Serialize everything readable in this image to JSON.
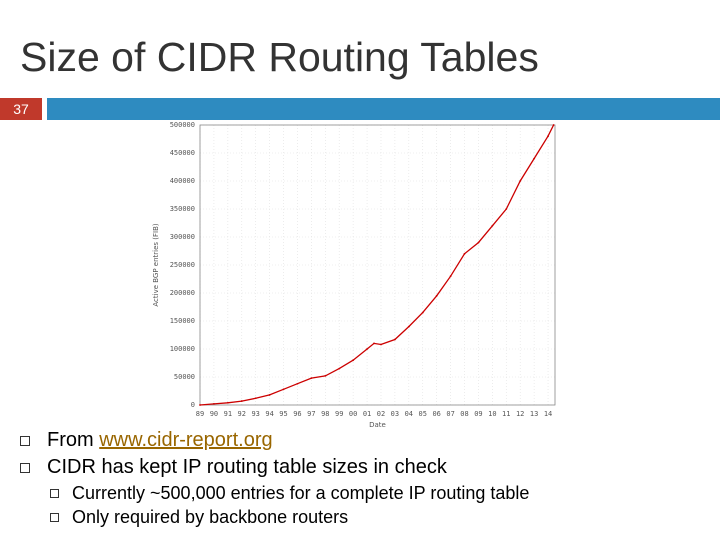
{
  "slide": {
    "title": "Size of CIDR Routing Tables",
    "number": "37"
  },
  "bullets": [
    {
      "prefix": "From ",
      "link": "www.cidr-report.org"
    },
    {
      "text": "CIDR has kept IP routing table sizes in check"
    }
  ],
  "sub_bullets": [
    {
      "text": "Currently ~500,000 entries for a complete IP routing table"
    },
    {
      "text": "Only required by backbone routers"
    }
  ],
  "colors": {
    "accent_bar": "#2e8bc0",
    "number_box": "#c0392b",
    "series": "#cc0000",
    "link": "#996600"
  },
  "chart_data": {
    "type": "line",
    "title": "",
    "xlabel": "Date",
    "ylabel": "Active BGP entries (FIB)",
    "xlim": [
      1989,
      2014.5
    ],
    "ylim": [
      0,
      500000
    ],
    "x_ticks": [
      "89",
      "90",
      "91",
      "92",
      "93",
      "94",
      "95",
      "96",
      "97",
      "98",
      "99",
      "00",
      "01",
      "02",
      "03",
      "04",
      "05",
      "06",
      "07",
      "08",
      "09",
      "10",
      "11",
      "12",
      "13",
      "14"
    ],
    "y_ticks": [
      "0",
      "50000",
      "100000",
      "150000",
      "200000",
      "250000",
      "300000",
      "350000",
      "400000",
      "450000",
      "500000"
    ],
    "grid": true,
    "series": [
      {
        "x": [
          1989,
          1990,
          1991,
          1992,
          1993,
          1994,
          1995,
          1996,
          1997,
          1998,
          1999,
          2000,
          2001,
          2001.5,
          2002,
          2003,
          2004,
          2005,
          2006,
          2007,
          2008,
          2009,
          2010,
          2011,
          2012,
          2013,
          2014,
          2014.4
        ],
        "y": [
          0,
          2000,
          4000,
          7000,
          12000,
          18000,
          28000,
          38000,
          48000,
          52000,
          65000,
          80000,
          100000,
          110000,
          108000,
          117000,
          140000,
          165000,
          195000,
          230000,
          270000,
          290000,
          320000,
          350000,
          400000,
          440000,
          480000,
          500000
        ]
      }
    ]
  }
}
